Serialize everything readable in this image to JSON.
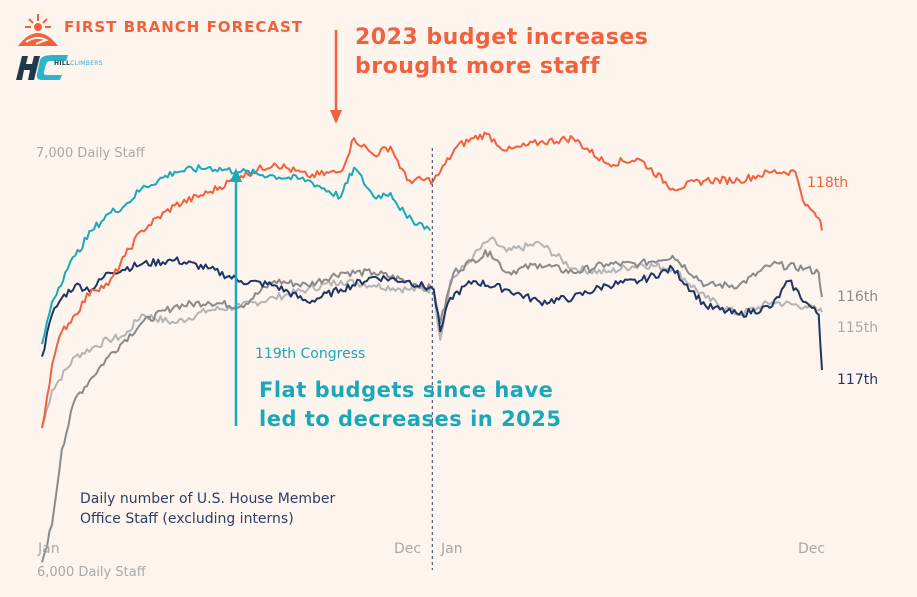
{
  "brand": {
    "title": "FIRST BRANCH FORECAST",
    "partner": "HILL",
    "partner_suffix": "CLIMBERS",
    "logo_icons": [
      "sunrise-icon",
      "hc-logo-icon"
    ]
  },
  "annotations": {
    "increase": "2023 budget increases brought more staff",
    "increase_lines": [
      "2023 budget increases",
      "brought more staff"
    ],
    "congress_label": "119th Congress",
    "flat_lines": [
      "Flat budgets since have",
      "led to decreases in 2025"
    ],
    "subtitle_lines": [
      "Daily number of U.S. House Member",
      "Office Staff (excluding interns)"
    ]
  },
  "chart_data": {
    "type": "line",
    "title": "Daily number of U.S. House Member Office Staff (excluding interns)",
    "xlabel": "",
    "ylabel": "Daily Staff",
    "x_unit": "months since start of Congress (0 = Jan year 1, 24 = end Dec year 2)",
    "x_ticks": [
      {
        "x": 0,
        "label": "Jan"
      },
      {
        "x": 11.5,
        "label": "Dec"
      },
      {
        "x": 12.4,
        "label": "Jan"
      },
      {
        "x": 23.5,
        "label": "Dec"
      }
    ],
    "y_ticks": [
      {
        "y": 7000,
        "label": "7,000 Daily Staff"
      },
      {
        "y": 6000,
        "label": "6,000 Daily Staff"
      }
    ],
    "ylim": [
      6000,
      7050
    ],
    "xlim": [
      0,
      24
    ],
    "grid": false,
    "year_divider_x": 12,
    "series": [
      {
        "name": "115th",
        "color": "#b4b4b4",
        "points": [
          [
            0,
            6350
          ],
          [
            0.3,
            6440
          ],
          [
            1,
            6520
          ],
          [
            1.5,
            6540
          ],
          [
            2,
            6560
          ],
          [
            2.5,
            6570
          ],
          [
            3,
            6620
          ],
          [
            4,
            6600
          ],
          [
            5,
            6630
          ],
          [
            6,
            6640
          ],
          [
            7,
            6660
          ],
          [
            8,
            6680
          ],
          [
            9,
            6700
          ],
          [
            10,
            6690
          ],
          [
            11,
            6680
          ],
          [
            11.8,
            6680
          ],
          [
            12,
            6560
          ],
          [
            12.3,
            6700
          ],
          [
            12.8,
            6740
          ],
          [
            13,
            6760
          ],
          [
            13.5,
            6800
          ],
          [
            14,
            6770
          ],
          [
            15,
            6790
          ],
          [
            16,
            6730
          ],
          [
            17,
            6720
          ],
          [
            18,
            6740
          ],
          [
            19,
            6730
          ],
          [
            20,
            6660
          ],
          [
            21,
            6620
          ],
          [
            22,
            6650
          ],
          [
            23,
            6640
          ],
          [
            23.4,
            6630
          ],
          [
            23.5,
            6626
          ]
        ]
      },
      {
        "name": "116th",
        "color": "#8a8a8a",
        "points": [
          [
            0,
            6030
          ],
          [
            0.3,
            6120
          ],
          [
            0.6,
            6300
          ],
          [
            1,
            6420
          ],
          [
            1.5,
            6470
          ],
          [
            2,
            6520
          ],
          [
            2.5,
            6560
          ],
          [
            3,
            6600
          ],
          [
            4,
            6640
          ],
          [
            5,
            6650
          ],
          [
            6,
            6640
          ],
          [
            7,
            6700
          ],
          [
            8,
            6690
          ],
          [
            9,
            6720
          ],
          [
            10,
            6720
          ],
          [
            11,
            6700
          ],
          [
            11.8,
            6680
          ],
          [
            12,
            6600
          ],
          [
            12.4,
            6720
          ],
          [
            13,
            6750
          ],
          [
            13.5,
            6770
          ],
          [
            14,
            6720
          ],
          [
            15,
            6740
          ],
          [
            16,
            6720
          ],
          [
            17,
            6740
          ],
          [
            18,
            6740
          ],
          [
            19,
            6760
          ],
          [
            20,
            6690
          ],
          [
            21,
            6690
          ],
          [
            22,
            6740
          ],
          [
            23,
            6730
          ],
          [
            23.4,
            6720
          ],
          [
            23.5,
            6662
          ]
        ]
      },
      {
        "name": "117th",
        "color": "#1e3565",
        "points": [
          [
            0,
            6520
          ],
          [
            0.3,
            6620
          ],
          [
            0.6,
            6660
          ],
          [
            1,
            6690
          ],
          [
            1.5,
            6680
          ],
          [
            2,
            6720
          ],
          [
            3,
            6740
          ],
          [
            4,
            6750
          ],
          [
            5,
            6730
          ],
          [
            6,
            6700
          ],
          [
            7,
            6690
          ],
          [
            8,
            6650
          ],
          [
            9,
            6680
          ],
          [
            10,
            6710
          ],
          [
            11,
            6700
          ],
          [
            11.8,
            6680
          ],
          [
            12,
            6580
          ],
          [
            12.3,
            6660
          ],
          [
            13,
            6700
          ],
          [
            14,
            6680
          ],
          [
            15,
            6650
          ],
          [
            16,
            6660
          ],
          [
            17,
            6690
          ],
          [
            18,
            6700
          ],
          [
            19,
            6730
          ],
          [
            20,
            6640
          ],
          [
            21,
            6620
          ],
          [
            22,
            6640
          ],
          [
            22.5,
            6700
          ],
          [
            23,
            6650
          ],
          [
            23.4,
            6620
          ],
          [
            23.5,
            6488
          ]
        ]
      },
      {
        "name": "118th",
        "color": "#f2613f",
        "points": [
          [
            0,
            6350
          ],
          [
            0.3,
            6500
          ],
          [
            0.6,
            6580
          ],
          [
            1,
            6620
          ],
          [
            1.5,
            6680
          ],
          [
            2,
            6690
          ],
          [
            2.5,
            6760
          ],
          [
            3,
            6820
          ],
          [
            4,
            6880
          ],
          [
            5,
            6910
          ],
          [
            6,
            6950
          ],
          [
            7,
            6980
          ],
          [
            8,
            6950
          ],
          [
            9,
            6960
          ],
          [
            9.4,
            7040
          ],
          [
            10,
            7000
          ],
          [
            10.5,
            7020
          ],
          [
            11,
            6940
          ],
          [
            11.8,
            6940
          ],
          [
            12,
            6960
          ],
          [
            12.5,
            7020
          ],
          [
            13,
            7040
          ],
          [
            13.4,
            7050
          ],
          [
            14,
            7010
          ],
          [
            15,
            7030
          ],
          [
            16,
            7040
          ],
          [
            17,
            6980
          ],
          [
            18,
            6990
          ],
          [
            19,
            6920
          ],
          [
            20,
            6940
          ],
          [
            21,
            6940
          ],
          [
            22,
            6960
          ],
          [
            22.7,
            6960
          ],
          [
            23,
            6880
          ],
          [
            23.4,
            6850
          ],
          [
            23.5,
            6820
          ]
        ]
      },
      {
        "name": "119th",
        "color": "#1aa9ba",
        "points": [
          [
            0,
            6550
          ],
          [
            0.3,
            6650
          ],
          [
            0.7,
            6720
          ],
          [
            1,
            6760
          ],
          [
            1.5,
            6820
          ],
          [
            2,
            6860
          ],
          [
            2.5,
            6880
          ],
          [
            3,
            6920
          ],
          [
            4,
            6960
          ],
          [
            5,
            6970
          ],
          [
            6,
            6960
          ],
          [
            7,
            6950
          ],
          [
            8,
            6940
          ],
          [
            9,
            6900
          ],
          [
            9.4,
            6970
          ],
          [
            10,
            6900
          ],
          [
            10.5,
            6910
          ],
          [
            11,
            6850
          ],
          [
            11.6,
            6830
          ],
          [
            11.7,
            6820
          ]
        ]
      }
    ]
  }
}
